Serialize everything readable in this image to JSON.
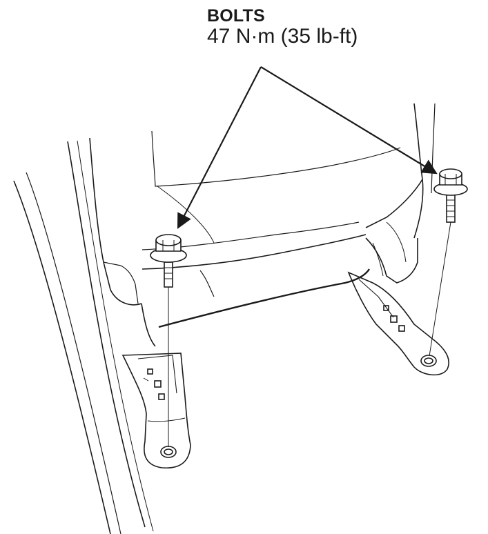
{
  "callout": {
    "title": "BOLTS",
    "torque": "47 N·m (35 lb-ft)"
  },
  "colors": {
    "ink": "#1a1a1a",
    "background": "#ffffff"
  },
  "parts": {
    "left_bolt_icon": "hex-flange-bolt-icon",
    "right_bolt_icon": "hex-flange-bolt-icon"
  }
}
